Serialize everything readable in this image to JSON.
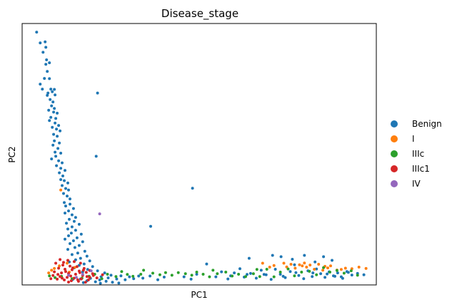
{
  "chart_data": {
    "type": "scatter",
    "title": "Disease_stage",
    "xlabel": "PC1",
    "ylabel": "PC2",
    "xticks": [],
    "yticks": [],
    "xlim": [
      0,
      100
    ],
    "ylim": [
      0,
      100
    ],
    "legend_position": "right",
    "grid": false,
    "series": [
      {
        "name": "Benign",
        "color": "#1f77b4",
        "points": [
          [
            4.1,
            96.7
          ],
          [
            6.5,
            93.0
          ],
          [
            5.1,
            92.6
          ],
          [
            6.7,
            90.9
          ],
          [
            5.9,
            89.0
          ],
          [
            6.9,
            86.1
          ],
          [
            7.7,
            85.0
          ],
          [
            6.7,
            84.4
          ],
          [
            7.1,
            81.7
          ],
          [
            6.3,
            79.0
          ],
          [
            7.7,
            78.9
          ],
          [
            5.1,
            76.8
          ],
          [
            5.7,
            74.9
          ],
          [
            7.3,
            73.4
          ],
          [
            8.1,
            74.9
          ],
          [
            9.1,
            74.8
          ],
          [
            8.5,
            73.9
          ],
          [
            7.1,
            72.5
          ],
          [
            7.9,
            70.9
          ],
          [
            9.3,
            72.7
          ],
          [
            21.3,
            73.4
          ],
          [
            8.7,
            70.0
          ],
          [
            8.3,
            68.5
          ],
          [
            9.1,
            67.5
          ],
          [
            7.5,
            66.8
          ],
          [
            8.9,
            66.1
          ],
          [
            9.9,
            65.7
          ],
          [
            8.1,
            64.1
          ],
          [
            9.5,
            63.7
          ],
          [
            7.7,
            62.9
          ],
          [
            9.3,
            61.9
          ],
          [
            10.3,
            61.0
          ],
          [
            8.5,
            60.3
          ],
          [
            9.7,
            59.6
          ],
          [
            10.7,
            58.9
          ],
          [
            8.9,
            57.6
          ],
          [
            9.9,
            56.9
          ],
          [
            9.1,
            55.1
          ],
          [
            10.5,
            54.3
          ],
          [
            8.7,
            53.5
          ],
          [
            10.1,
            52.2
          ],
          [
            9.3,
            50.8
          ],
          [
            10.9,
            50.4
          ],
          [
            9.5,
            49.2
          ],
          [
            20.9,
            49.2
          ],
          [
            8.3,
            48.2
          ],
          [
            10.3,
            47.5
          ],
          [
            11.3,
            46.7
          ],
          [
            9.7,
            45.6
          ],
          [
            10.9,
            44.6
          ],
          [
            12.1,
            43.8
          ],
          [
            10.5,
            42.9
          ],
          [
            11.5,
            41.7
          ],
          [
            10.9,
            40.3
          ],
          [
            11.9,
            39.9
          ],
          [
            12.9,
            39.0
          ],
          [
            11.3,
            38.0
          ],
          [
            12.3,
            36.9
          ],
          [
            13.1,
            36.3
          ],
          [
            11.7,
            35.0
          ],
          [
            12.7,
            34.0
          ],
          [
            13.5,
            32.9
          ],
          [
            11.9,
            31.5
          ],
          [
            13.5,
            30.9
          ],
          [
            12.3,
            30.2
          ],
          [
            14.5,
            29.2
          ],
          [
            13.1,
            28.3
          ],
          [
            12.1,
            27.5
          ],
          [
            14.1,
            26.8
          ],
          [
            15.1,
            25.8
          ],
          [
            13.3,
            25.1
          ],
          [
            14.7,
            24.3
          ],
          [
            12.5,
            23.6
          ],
          [
            16.1,
            23.2
          ],
          [
            14.1,
            22.2
          ],
          [
            12.9,
            21.4
          ],
          [
            15.1,
            20.9
          ],
          [
            13.9,
            19.8
          ],
          [
            16.7,
            19.4
          ],
          [
            13.1,
            18.8
          ],
          [
            15.5,
            18.0
          ],
          [
            12.1,
            17.5
          ],
          [
            14.5,
            16.9
          ],
          [
            17.1,
            16.5
          ],
          [
            13.5,
            15.8
          ],
          [
            16.1,
            15.1
          ],
          [
            14.9,
            14.3
          ],
          [
            12.9,
            13.6
          ],
          [
            17.7,
            12.9
          ],
          [
            15.7,
            12.2
          ],
          [
            14.1,
            11.6
          ],
          [
            18.3,
            11.0
          ],
          [
            16.5,
            10.2
          ],
          [
            15.1,
            9.6
          ],
          [
            19.1,
            9.2
          ],
          [
            13.3,
            8.8
          ],
          [
            17.5,
            8.0
          ],
          [
            16.1,
            7.5
          ],
          [
            19.9,
            7.0
          ],
          [
            14.7,
            6.5
          ],
          [
            18.5,
            5.9
          ],
          [
            21.3,
            5.4
          ],
          [
            17.1,
            5.0
          ],
          [
            23.3,
            4.6
          ],
          [
            20.1,
            4.1
          ],
          [
            25.1,
            3.7
          ],
          [
            22.3,
            3.1
          ],
          [
            27.9,
            3.5
          ],
          [
            30.3,
            3.1
          ],
          [
            24.3,
            2.7
          ],
          [
            19.3,
            2.5
          ],
          [
            16.5,
            2.3
          ],
          [
            14.3,
            2.1
          ],
          [
            21.9,
            1.9
          ],
          [
            26.7,
            2.3
          ],
          [
            18.3,
            1.6
          ],
          [
            23.7,
            1.4
          ],
          [
            29.1,
            2.0
          ],
          [
            20.7,
            1.2
          ],
          [
            25.5,
            1.0
          ],
          [
            31.5,
            2.4
          ],
          [
            32.9,
            3.4
          ],
          [
            17.3,
            0.9
          ],
          [
            27.3,
            0.7
          ],
          [
            22.1,
            0.6
          ],
          [
            34.1,
            2.6
          ],
          [
            36.1,
            3.4
          ],
          [
            38.3,
            2.0
          ],
          [
            40.1,
            3.0
          ],
          [
            45.7,
            3.1
          ],
          [
            47.7,
            2.2
          ],
          [
            49.3,
            4.1
          ],
          [
            52.1,
            8.0
          ],
          [
            54.7,
            3.1
          ],
          [
            56.3,
            5.0
          ],
          [
            58.1,
            2.3
          ],
          [
            59.9,
            4.6
          ],
          [
            61.5,
            6.2
          ],
          [
            62.7,
            3.0
          ],
          [
            64.5,
            4.4
          ],
          [
            66.1,
            2.6
          ],
          [
            67.5,
            5.6
          ],
          [
            68.9,
            3.9
          ],
          [
            70.3,
            2.1
          ],
          [
            71.5,
            6.0
          ],
          [
            72.9,
            4.1
          ],
          [
            74.3,
            2.8
          ],
          [
            75.7,
            5.1
          ],
          [
            76.9,
            7.7
          ],
          [
            78.1,
            3.6
          ],
          [
            79.5,
            2.4
          ],
          [
            80.7,
            5.4
          ],
          [
            81.9,
            3.2
          ],
          [
            83.1,
            6.1
          ],
          [
            84.3,
            4.3
          ],
          [
            85.5,
            2.9
          ],
          [
            86.7,
            5.0
          ],
          [
            87.9,
            3.5
          ],
          [
            89.1,
            4.6
          ],
          [
            90.5,
            2.5
          ],
          [
            91.7,
            5.1
          ],
          [
            93.1,
            3.8
          ],
          [
            94.7,
            4.4
          ],
          [
            96.5,
            3.9
          ],
          [
            64.1,
            10.2
          ],
          [
            70.7,
            11.3
          ],
          [
            73.1,
            10.8
          ],
          [
            76.3,
            9.8
          ],
          [
            79.7,
            11.3
          ],
          [
            82.7,
            8.8
          ],
          [
            85.1,
            10.8
          ],
          [
            87.5,
            9.4
          ],
          [
            48.1,
            37.0
          ],
          [
            36.3,
            22.4
          ],
          [
            68.3,
            4.0
          ],
          [
            77.3,
            4.7
          ],
          [
            86.1,
            4.2
          ],
          [
            90.1,
            3.1
          ],
          [
            63.5,
            4.0
          ],
          [
            82.1,
            4.6
          ],
          [
            58.9,
            3.5
          ],
          [
            73.7,
            3.3
          ],
          [
            92.1,
            4.8
          ],
          [
            88.3,
            3.3
          ]
        ]
      },
      {
        "name": "I",
        "color": "#ff7f0e",
        "points": [
          [
            10.9,
            36.3
          ],
          [
            9.1,
            6.3
          ],
          [
            8.3,
            5.6
          ],
          [
            10.5,
            7.3
          ],
          [
            12.7,
            8.3
          ],
          [
            7.5,
            4.6
          ],
          [
            14.9,
            6.7
          ],
          [
            13.3,
            4.9
          ],
          [
            67.9,
            8.3
          ],
          [
            69.9,
            6.8
          ],
          [
            71.1,
            7.4
          ],
          [
            73.9,
            8.3
          ],
          [
            74.7,
            6.9
          ],
          [
            75.9,
            7.9
          ],
          [
            77.1,
            6.4
          ],
          [
            78.3,
            7.7
          ],
          [
            79.7,
            8.4
          ],
          [
            80.3,
            6.8
          ],
          [
            81.3,
            7.6
          ],
          [
            82.5,
            6.0
          ],
          [
            83.7,
            7.9
          ],
          [
            84.9,
            5.6
          ],
          [
            86.3,
            6.5
          ],
          [
            87.1,
            7.3
          ],
          [
            88.9,
            5.7
          ],
          [
            90.1,
            5.9
          ],
          [
            91.3,
            6.4
          ],
          [
            93.1,
            6.2
          ],
          [
            95.1,
            6.8
          ],
          [
            97.1,
            6.3
          ],
          [
            85.5,
            7.1
          ],
          [
            79.1,
            7.3
          ]
        ]
      },
      {
        "name": "IIIc",
        "color": "#2ca02c",
        "points": [
          [
            7.7,
            3.5
          ],
          [
            9.3,
            2.8
          ],
          [
            11.1,
            3.3
          ],
          [
            14.1,
            2.4
          ],
          [
            16.9,
            2.6
          ],
          [
            18.9,
            3.3
          ],
          [
            20.5,
            4.1
          ],
          [
            22.5,
            2.4
          ],
          [
            24.1,
            4.1
          ],
          [
            26.5,
            3.2
          ],
          [
            28.1,
            5.1
          ],
          [
            29.7,
            4.0
          ],
          [
            31.3,
            3.3
          ],
          [
            33.5,
            4.1
          ],
          [
            34.3,
            5.6
          ],
          [
            36.9,
            4.5
          ],
          [
            38.9,
            3.9
          ],
          [
            40.5,
            4.7
          ],
          [
            42.3,
            3.7
          ],
          [
            44.1,
            4.7
          ],
          [
            46.1,
            4.3
          ],
          [
            47.9,
            3.7
          ],
          [
            49.3,
            4.9
          ],
          [
            51.1,
            4.1
          ],
          [
            52.9,
            3.1
          ],
          [
            55.1,
            4.3
          ],
          [
            57.5,
            4.9
          ],
          [
            59.3,
            3.4
          ],
          [
            61.1,
            4.1
          ],
          [
            63.1,
            3.2
          ],
          [
            65.3,
            4.3
          ],
          [
            67.1,
            3.2
          ],
          [
            69.1,
            6.0
          ],
          [
            71.1,
            3.1
          ],
          [
            72.9,
            4.9
          ],
          [
            75.1,
            6.1
          ],
          [
            76.9,
            3.5
          ],
          [
            78.9,
            4.9
          ],
          [
            81.1,
            5.2
          ],
          [
            83.1,
            3.9
          ],
          [
            85.1,
            6.6
          ],
          [
            86.9,
            4.9
          ],
          [
            88.9,
            5.5
          ],
          [
            90.9,
            4.5
          ],
          [
            92.9,
            5.4
          ],
          [
            94.7,
            3.7
          ],
          [
            53.9,
            5.6
          ],
          [
            66.3,
            5.9
          ]
        ]
      },
      {
        "name": "IIIc1",
        "color": "#d62728",
        "points": [
          [
            10.7,
            9.7
          ],
          [
            12.9,
            9.4
          ],
          [
            14.7,
            8.9
          ],
          [
            16.5,
            8.3
          ],
          [
            9.5,
            8.3
          ],
          [
            11.5,
            7.6
          ],
          [
            13.5,
            7.2
          ],
          [
            15.5,
            7.0
          ],
          [
            17.5,
            6.3
          ],
          [
            19.1,
            5.5
          ],
          [
            10.3,
            6.4
          ],
          [
            12.1,
            6.0
          ],
          [
            14.1,
            5.8
          ],
          [
            16.1,
            5.3
          ],
          [
            18.1,
            4.8
          ],
          [
            20.1,
            3.6
          ],
          [
            9.1,
            5.0
          ],
          [
            11.1,
            4.6
          ],
          [
            13.1,
            4.4
          ],
          [
            15.1,
            4.1
          ],
          [
            17.1,
            3.6
          ],
          [
            19.1,
            2.9
          ],
          [
            8.7,
            3.6
          ],
          [
            10.7,
            3.2
          ],
          [
            12.7,
            2.9
          ],
          [
            14.7,
            2.6
          ],
          [
            16.7,
            2.3
          ],
          [
            18.7,
            1.9
          ],
          [
            9.9,
            2.2
          ],
          [
            11.9,
            1.9
          ],
          [
            13.9,
            1.6
          ],
          [
            15.9,
            1.4
          ],
          [
            17.9,
            1.0
          ],
          [
            8.1,
            2.4
          ],
          [
            21.1,
            2.7
          ],
          [
            22.7,
            3.9
          ],
          [
            12.3,
            5.1
          ],
          [
            14.3,
            6.5
          ],
          [
            16.3,
            4.7
          ],
          [
            18.3,
            3.2
          ],
          [
            10.1,
            4.0
          ],
          [
            13.7,
            3.4
          ],
          [
            15.7,
            2.0
          ],
          [
            11.7,
            8.6
          ],
          [
            13.1,
            1.1
          ],
          [
            17.3,
            5.6
          ],
          [
            19.9,
            4.3
          ],
          [
            11.3,
            2.6
          ]
        ]
      },
      {
        "name": "IV",
        "color": "#9467bd",
        "points": [
          [
            21.9,
            27.2
          ],
          [
            17.1,
            4.1
          ],
          [
            15.3,
            2.9
          ],
          [
            19.5,
            5.4
          ],
          [
            13.1,
            3.7
          ]
        ]
      }
    ]
  }
}
